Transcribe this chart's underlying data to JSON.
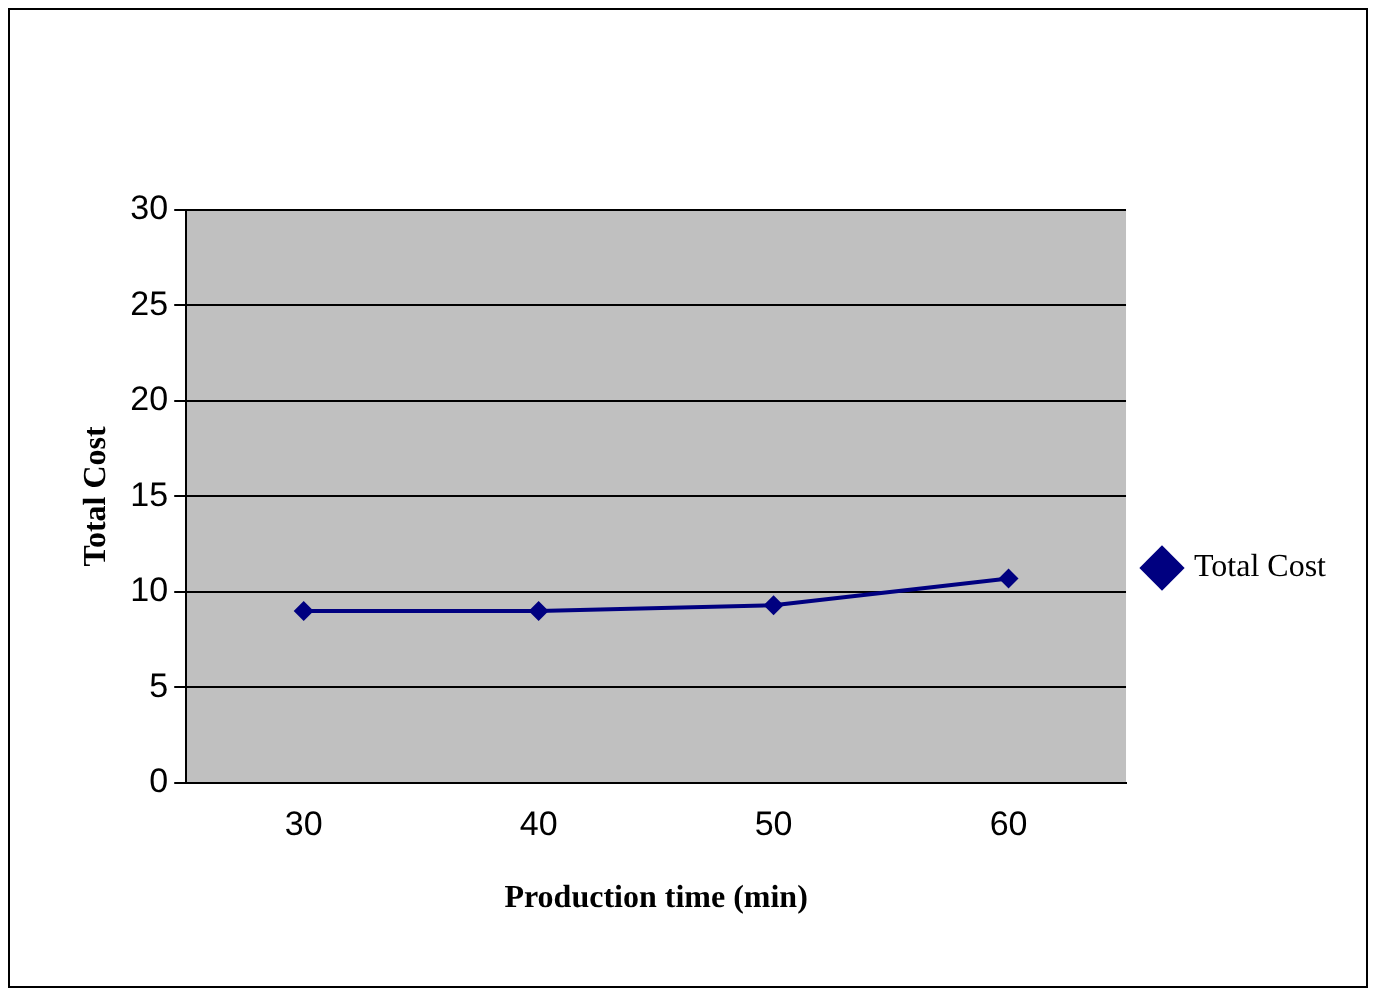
{
  "chart_data": {
    "type": "line",
    "xlabel": "Production time (min)",
    "ylabel": "Total Cost",
    "categories": [
      "30",
      "40",
      "50",
      "60"
    ],
    "series": [
      {
        "name": "Total Cost",
        "color": "#000080",
        "values": [
          9.0,
          9.0,
          9.3,
          10.7
        ]
      }
    ],
    "ylim": [
      0,
      30
    ],
    "yticks": [
      0,
      5,
      10,
      15,
      20,
      25,
      30
    ],
    "grid": "y",
    "legend": "right",
    "marker": "diamond",
    "line_style": "solid"
  }
}
